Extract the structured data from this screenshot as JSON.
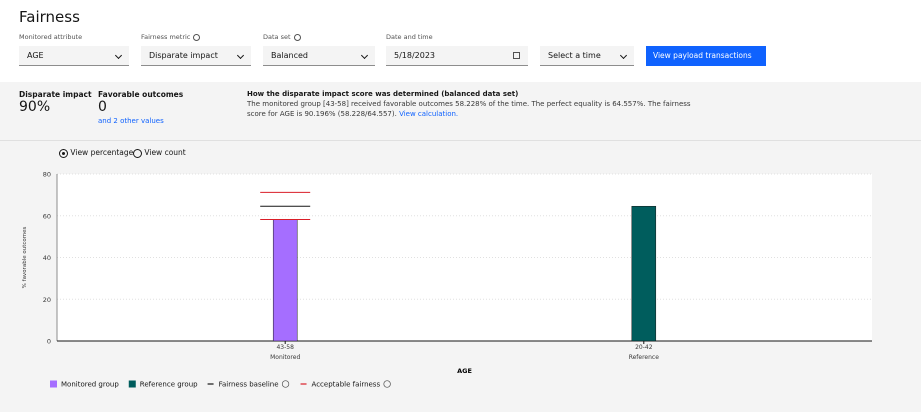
{
  "header": {
    "title": "Fairness"
  },
  "controls": [
    {
      "label": "Monitored attribute",
      "value": "AGE"
    },
    {
      "label": "Fairness metric",
      "value": "Disparate impact"
    },
    {
      "label": "Data set",
      "value": "Balanced"
    },
    {
      "label": "Date and time",
      "value": "5/18/2023"
    },
    {
      "value": "Select a time"
    }
  ],
  "button": "View payload transactions",
  "summary": {
    "metric_label": "Disparate impact",
    "metric_value": "90%",
    "outcomes_label": "Favorable outcomes",
    "outcomes_value": "0",
    "outcomes_link": "and 2 other values",
    "explanation_title": "How the disparate impact score was determined (balanced data set)",
    "explanation_text": "The monitored group [43-58] received favorable outcomes 58.228% of the time. The perfect equality is 64.557%. The fairness score for AGE is 90.196% (58.228/64.557).",
    "explanation_link": "View calculation."
  },
  "view_options": [
    "View percentage",
    "View count"
  ],
  "chart_data": {
    "type": "bar",
    "categories": [
      "43-58",
      "20-42"
    ],
    "category_groups": [
      "Monitored",
      "Reference"
    ],
    "x_label": "AGE",
    "y_label": "% favorable outcomes",
    "series": [
      {
        "name": "Monitored group",
        "color": "#a56eff",
        "values": [
          58.228,
          null
        ]
      },
      {
        "name": "Reference group",
        "color": "#005d5d",
        "values": [
          null,
          64.557
        ]
      }
    ],
    "reference_lines": [
      {
        "name": "Fairness baseline",
        "color": "#161616",
        "values": [
          64.557
        ]
      },
      {
        "name": "Acceptable fairness",
        "color": "#da1e28",
        "values": [
          58.2,
          71.2
        ]
      }
    ],
    "ylim": [
      0,
      80
    ],
    "yticks": [
      0,
      20,
      40,
      60,
      80
    ],
    "grid": true
  }
}
